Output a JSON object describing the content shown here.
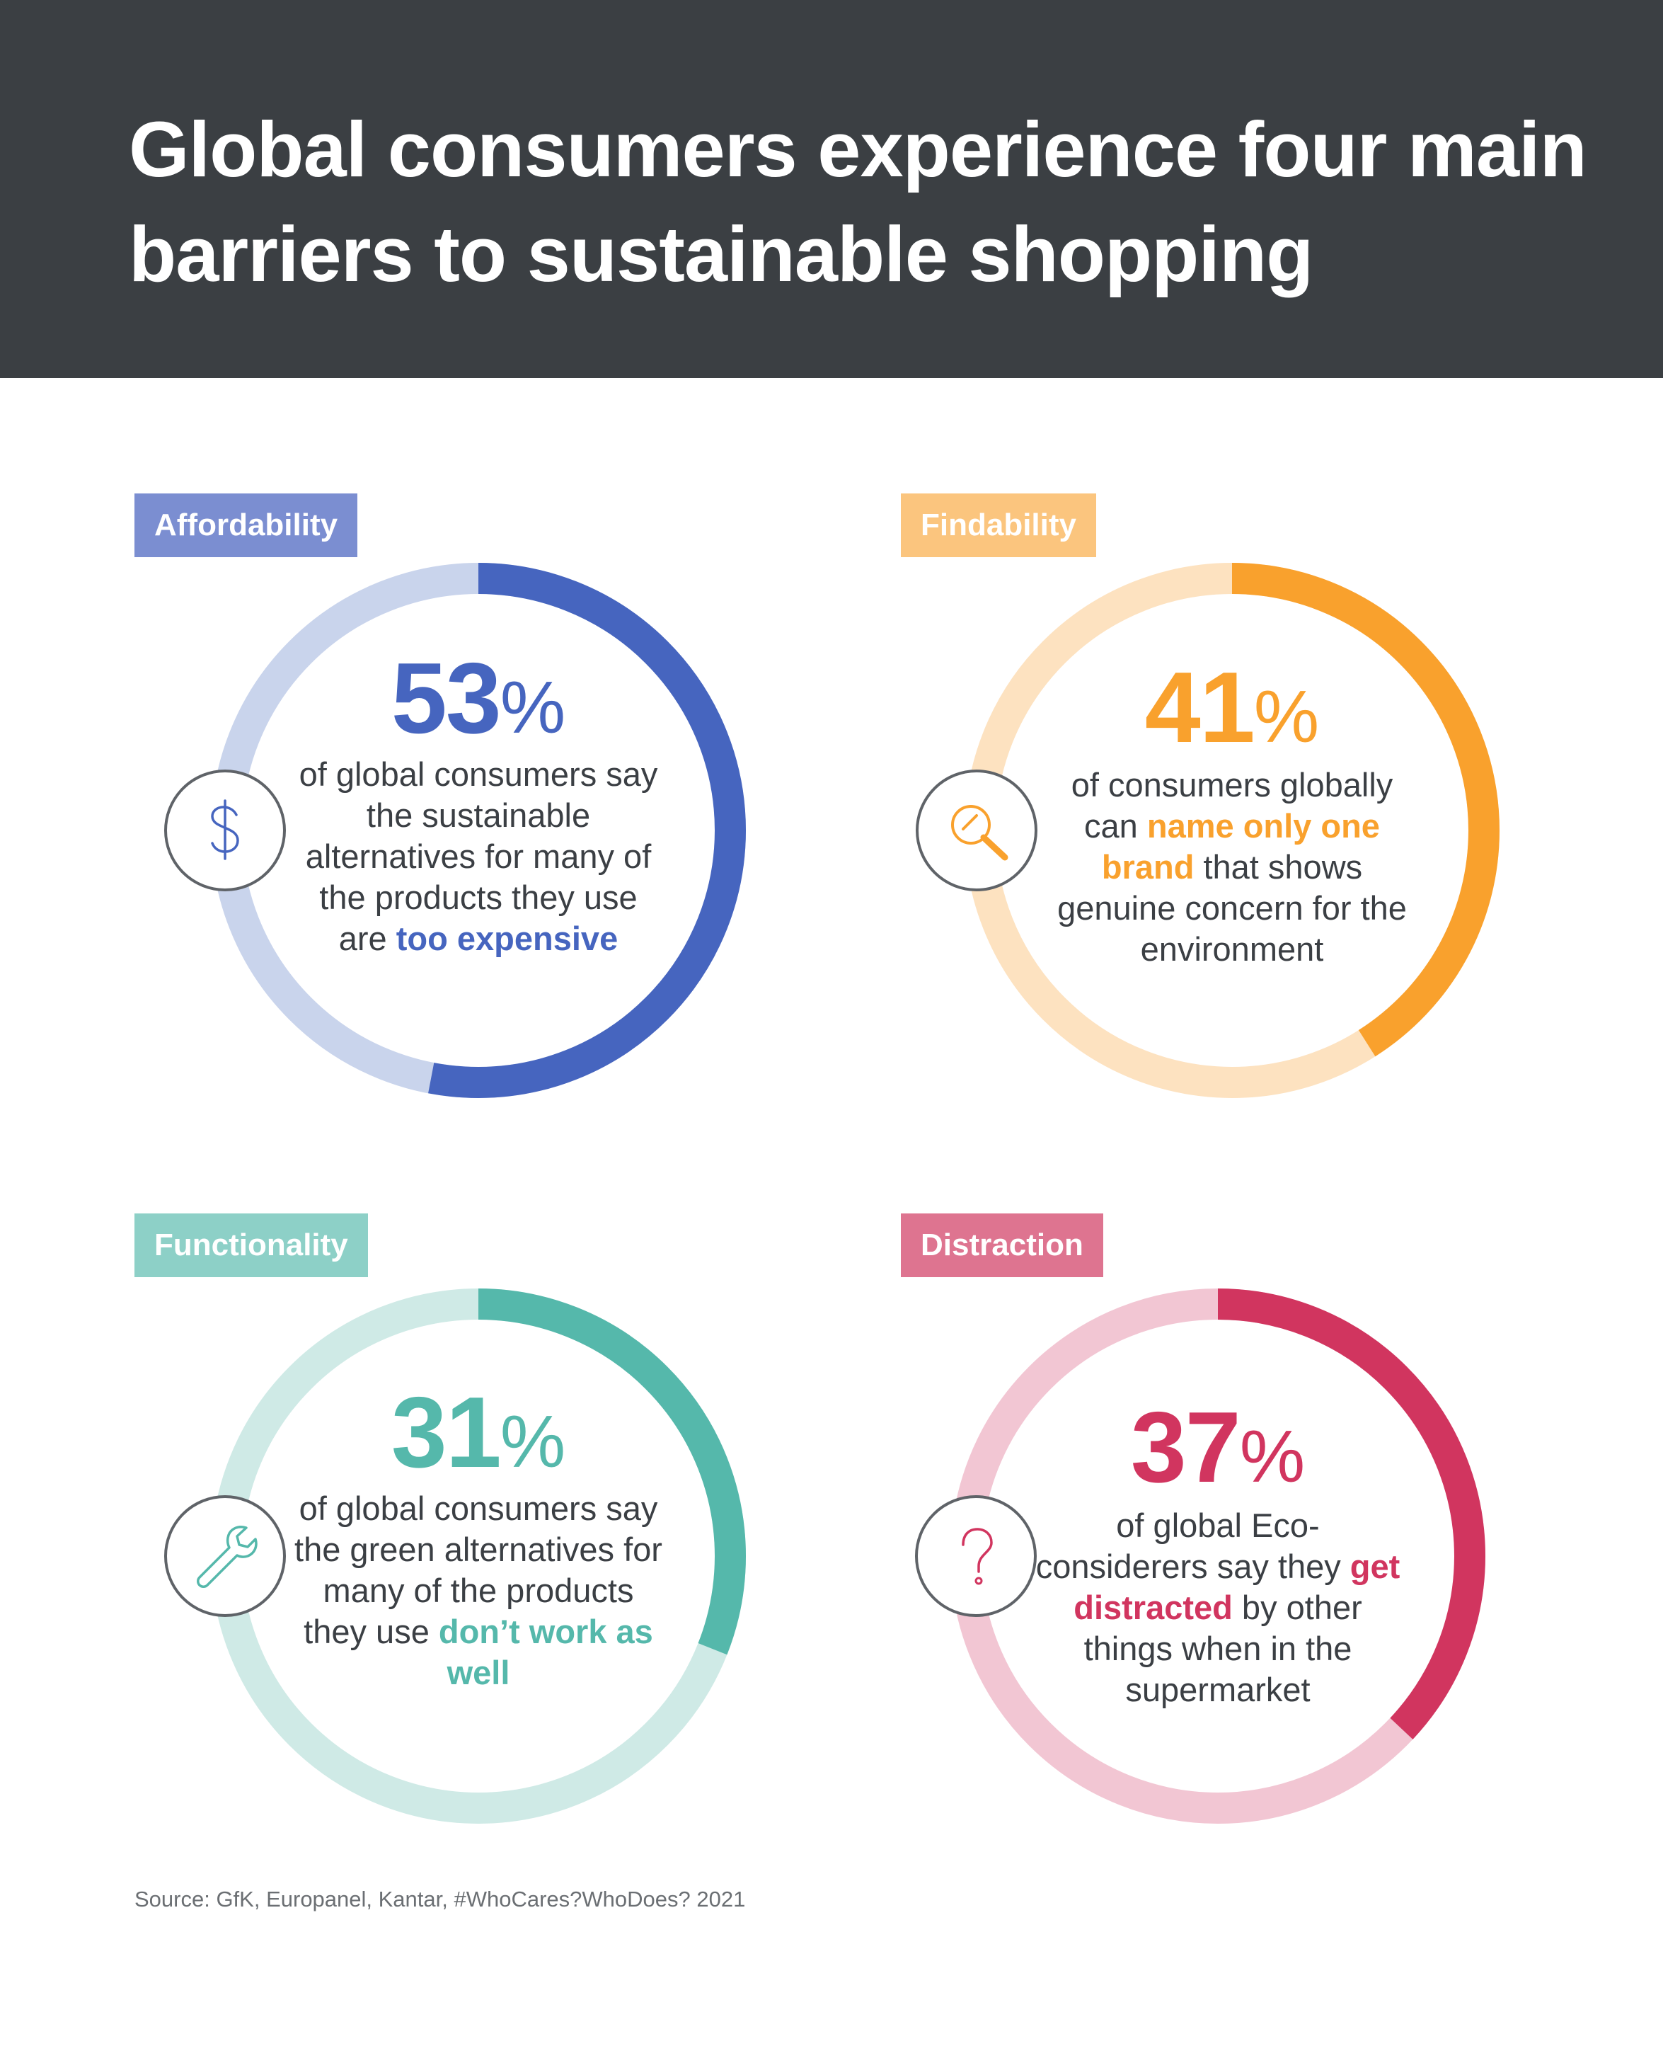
{
  "title": "Global consumers experience four main barriers to sustainable shopping",
  "source": "Source: GfK, Europanel, Kantar, #WhoCares?WhoDoes? 2021",
  "chart_data": [
    {
      "type": "pie",
      "category": "Affordability",
      "value_percent": 53,
      "value_label": "53",
      "unit": "%",
      "icon": "dollar-icon",
      "color": "#4665bf",
      "track_color": "#c9d4ec",
      "tag_color": "#7b8ed1",
      "desc_before": "of global consumers say the sustainable alternatives for many of the products they use are ",
      "desc_highlight": "too expensive",
      "desc_after": ""
    },
    {
      "type": "pie",
      "category": "Findability",
      "value_percent": 41,
      "value_label": "41",
      "unit": "%",
      "icon": "magnifier-icon",
      "color": "#f9a12d",
      "track_color": "#fde2c0",
      "tag_color": "#fbc57e",
      "desc_before": "of consumers globally can ",
      "desc_highlight": "name only one brand",
      "desc_after": " that shows genuine concern for the environment"
    },
    {
      "type": "pie",
      "category": "Functionality",
      "value_percent": 31,
      "value_label": "31",
      "unit": "%",
      "icon": "wrench-icon",
      "color": "#55b8ab",
      "track_color": "#cfeae6",
      "tag_color": "#8dd0c7",
      "desc_before": "of global consumers say the green alternatives for many of the products they use ",
      "desc_highlight": "don’t work as well",
      "desc_after": ""
    },
    {
      "type": "pie",
      "category": "Distraction",
      "value_percent": 37,
      "value_label": "37",
      "unit": "%",
      "icon": "question-icon",
      "color": "#d1355f",
      "track_color": "#f2c6d3",
      "tag_color": "#de7490",
      "desc_before": "of global Eco-considerers say they ",
      "desc_highlight": "get distracted",
      "desc_after": " by other things when in the supermarket"
    }
  ]
}
